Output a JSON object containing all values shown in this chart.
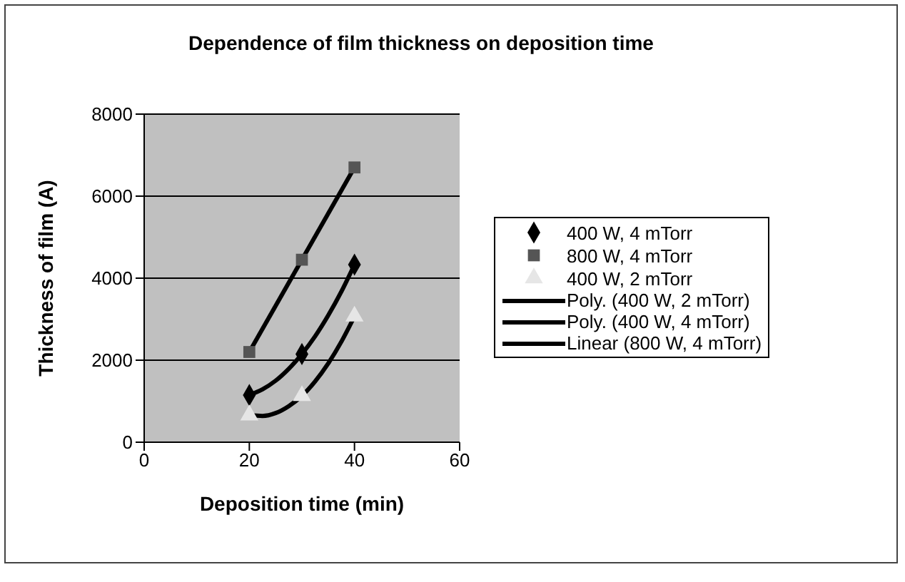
{
  "chart_data": {
    "type": "scatter",
    "title": "Dependence of film thickness on deposition time",
    "xlabel": "Deposition time (min)",
    "ylabel": "Thickness of film (A)",
    "xlim": [
      0,
      60
    ],
    "xticks": [
      0,
      20,
      40,
      60
    ],
    "ylim": [
      0,
      8000
    ],
    "yticks": [
      0,
      2000,
      4000,
      6000,
      8000
    ],
    "grid": "y",
    "legend": "right",
    "series": [
      {
        "name": "400 W, 4 mTorr",
        "type": "scatter",
        "marker": "diamond",
        "color": "#000000",
        "x": [
          20,
          30,
          40
        ],
        "values": [
          1150,
          2150,
          4330
        ]
      },
      {
        "name": "800 W, 4 mTorr",
        "type": "scatter",
        "marker": "square",
        "color": "#555555",
        "x": [
          20,
          30,
          40
        ],
        "values": [
          2200,
          4450,
          6700
        ]
      },
      {
        "name": "400 W, 2 mTorr",
        "type": "scatter",
        "marker": "triangle",
        "color": "#e6e6e6",
        "x": [
          20,
          30,
          40
        ],
        "values": [
          660,
          1130,
          3070
        ]
      },
      {
        "name": "Poly. (400 W, 2 mTorr)",
        "type": "line",
        "marker": "none",
        "color": "#000000",
        "x": [
          20,
          22.5,
          25,
          27.5,
          30,
          32.5,
          35,
          37.5,
          40
        ],
        "values": [
          660,
          640,
          710,
          880,
          1130,
          1480,
          1920,
          2450,
          3070
        ]
      },
      {
        "name": "Poly. (400 W, 4 mTorr)",
        "type": "line",
        "marker": "none",
        "color": "#000000",
        "x": [
          20,
          22.5,
          25,
          27.5,
          30,
          32.5,
          35,
          37.5,
          40
        ],
        "values": [
          1150,
          1290,
          1500,
          1790,
          2150,
          2580,
          3090,
          3670,
          4330
        ]
      },
      {
        "name": "Linear (800 W, 4 mTorr)",
        "type": "line",
        "marker": "none",
        "color": "#000000",
        "x": [
          20,
          40
        ],
        "values": [
          2200,
          6700
        ]
      }
    ]
  }
}
